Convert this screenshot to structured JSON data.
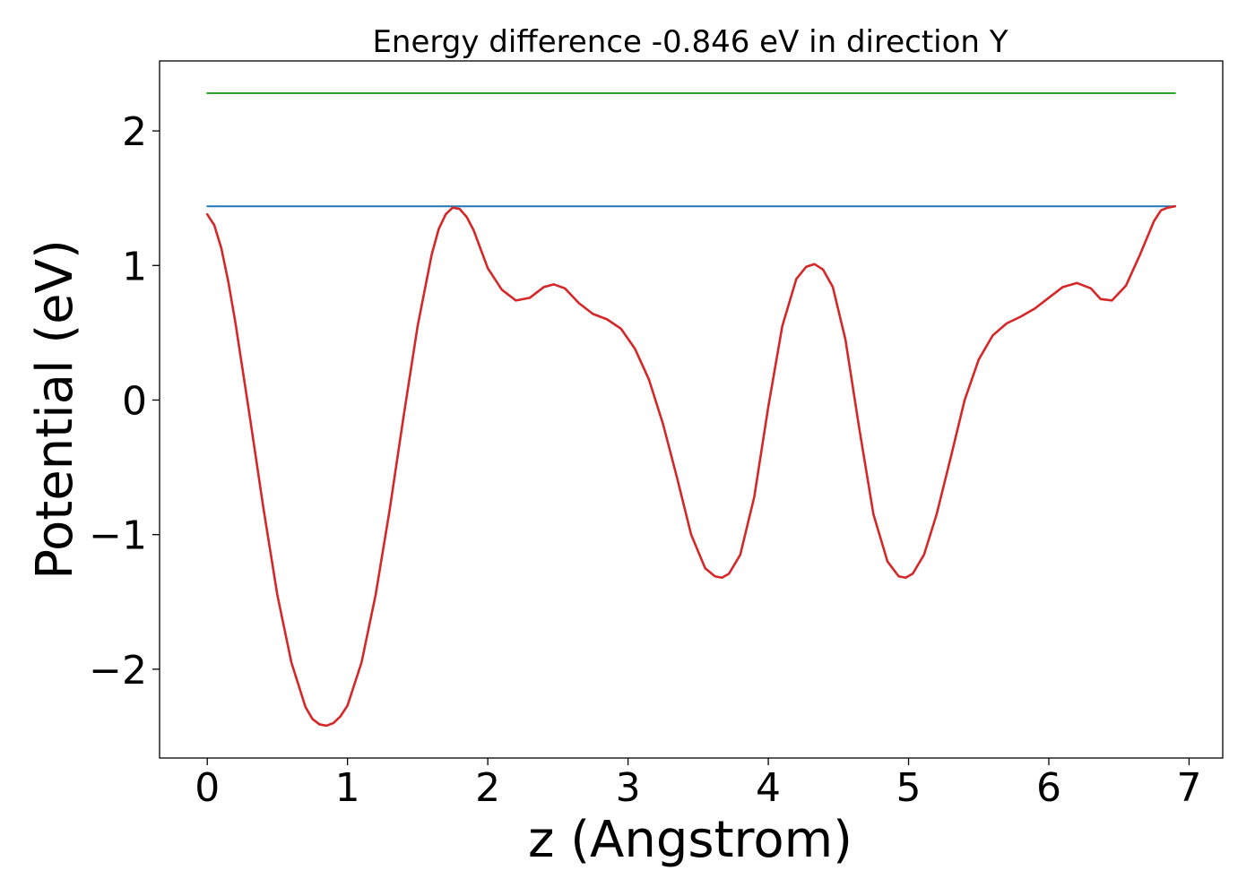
{
  "chart_data": {
    "type": "line",
    "title": "Energy difference -0.846 eV in direction Y",
    "xlabel": "z (Angstrom)",
    "ylabel": "Potential (eV)",
    "xlim": [
      -0.34,
      7.24
    ],
    "ylim": [
      -2.66,
      2.52
    ],
    "xticks": [
      0,
      1,
      2,
      3,
      4,
      5,
      6,
      7
    ],
    "yticks": [
      -2,
      -1,
      0,
      1,
      2
    ],
    "xtick_labels": [
      "0",
      "1",
      "2",
      "3",
      "4",
      "5",
      "6",
      "7"
    ],
    "ytick_labels": [
      "−2",
      "−1",
      "0",
      "1",
      "2"
    ],
    "grid": false,
    "series": [
      {
        "color": "#d62728",
        "x": [
          0,
          0.05,
          0.1,
          0.15,
          0.2,
          0.3,
          0.4,
          0.5,
          0.6,
          0.7,
          0.75,
          0.8,
          0.85,
          0.9,
          0.95,
          1.0,
          1.1,
          1.2,
          1.3,
          1.4,
          1.5,
          1.6,
          1.65,
          1.7,
          1.75,
          1.8,
          1.85,
          1.9,
          2.0,
          2.1,
          2.2,
          2.3,
          2.4,
          2.47,
          2.55,
          2.65,
          2.75,
          2.85,
          2.95,
          3.05,
          3.15,
          3.25,
          3.35,
          3.45,
          3.55,
          3.62,
          3.67,
          3.72,
          3.8,
          3.9,
          4.0,
          4.1,
          4.2,
          4.27,
          4.33,
          4.39,
          4.46,
          4.55,
          4.65,
          4.75,
          4.85,
          4.93,
          4.98,
          5.03,
          5.11,
          5.2,
          5.3,
          5.4,
          5.5,
          5.6,
          5.7,
          5.8,
          5.9,
          6.0,
          6.1,
          6.2,
          6.3,
          6.37,
          6.45,
          6.55,
          6.65,
          6.75,
          6.8,
          6.85,
          6.9
        ],
        "y": [
          1.38,
          1.3,
          1.13,
          0.88,
          0.58,
          -0.1,
          -0.8,
          -1.45,
          -1.95,
          -2.28,
          -2.37,
          -2.41,
          -2.42,
          -2.4,
          -2.35,
          -2.27,
          -1.95,
          -1.45,
          -0.82,
          -0.12,
          0.55,
          1.08,
          1.27,
          1.38,
          1.43,
          1.42,
          1.36,
          1.26,
          0.98,
          0.82,
          0.74,
          0.76,
          0.84,
          0.86,
          0.83,
          0.72,
          0.64,
          0.6,
          0.53,
          0.38,
          0.15,
          -0.18,
          -0.58,
          -1.0,
          -1.25,
          -1.31,
          -1.32,
          -1.29,
          -1.15,
          -0.72,
          -0.05,
          0.55,
          0.9,
          0.99,
          1.01,
          0.97,
          0.84,
          0.45,
          -0.22,
          -0.85,
          -1.2,
          -1.31,
          -1.32,
          -1.29,
          -1.15,
          -0.85,
          -0.43,
          0.0,
          0.3,
          0.48,
          0.57,
          0.62,
          0.68,
          0.76,
          0.84,
          0.87,
          0.83,
          0.75,
          0.74,
          0.85,
          1.08,
          1.33,
          1.41,
          1.43,
          1.44
        ]
      },
      {
        "color": "#1f77b4",
        "x": [
          0,
          6.9
        ],
        "y": [
          1.44,
          1.44
        ]
      },
      {
        "color": "#2ca02c",
        "x": [
          0,
          6.9
        ],
        "y": [
          2.28,
          2.28
        ]
      }
    ]
  }
}
